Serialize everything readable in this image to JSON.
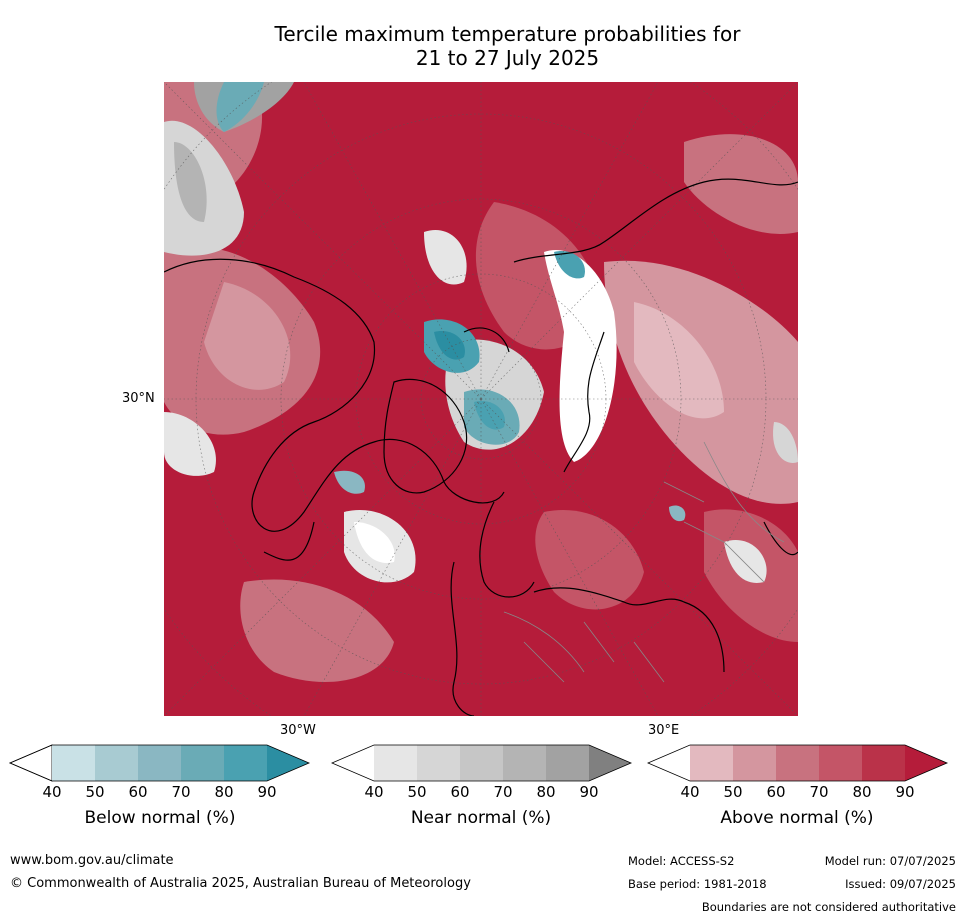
{
  "title_line1": "Tercile maximum temperature probabilities for",
  "title_line2": "21 to 27 July 2025",
  "map": {
    "lat_label": "30°N",
    "lon_label_west": "30°W",
    "lon_label_east": "30°E"
  },
  "colorbars": [
    {
      "label": "Below normal (%)",
      "ticks": [
        "40",
        "50",
        "60",
        "70",
        "80",
        "90"
      ],
      "colors": [
        "#ffffff",
        "#c9e1e6",
        "#a8cbd2",
        "#8ab7c2",
        "#6aabb6",
        "#4aa1b1",
        "#2b8ea2"
      ]
    },
    {
      "label": "Near normal (%)",
      "ticks": [
        "40",
        "50",
        "60",
        "70",
        "80",
        "90"
      ],
      "colors": [
        "#ffffff",
        "#e6e6e6",
        "#d6d6d6",
        "#c6c6c6",
        "#b4b4b4",
        "#a2a2a2",
        "#808080"
      ]
    },
    {
      "label": "Above normal (%)",
      "ticks": [
        "40",
        "50",
        "60",
        "70",
        "80",
        "90"
      ],
      "colors": [
        "#ffffff",
        "#e3b9bf",
        "#d4969f",
        "#c8727f",
        "#c45567",
        "#ba3249",
        "#b51c3a"
      ]
    }
  ],
  "footer": {
    "website": "www.bom.gov.au/climate",
    "copyright": "© Commonwealth of Australia 2025, Australian Bureau of Meteorology",
    "model": "Model: ACCESS-S2",
    "model_run": "Model run: 07/07/2025",
    "base_period": "Base period: 1981-2018",
    "issued": "Issued: 09/07/2025",
    "boundaries": "Boundaries are not considered authoritative"
  }
}
